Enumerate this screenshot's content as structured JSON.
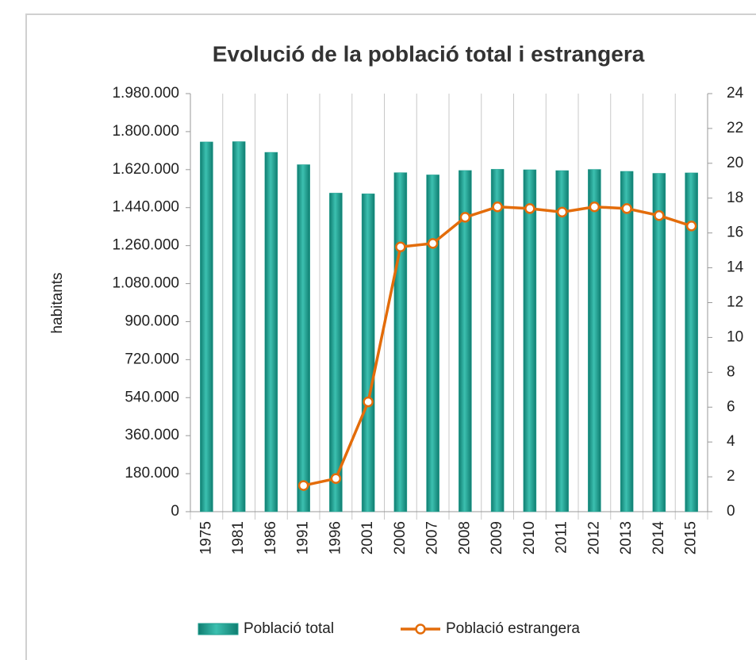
{
  "chart_data": {
    "type": "bar_line",
    "title": "Evolució de la població total i estrangera",
    "ylabel": "habitants",
    "categories": [
      "1975",
      "1981",
      "1986",
      "1991",
      "1996",
      "2001",
      "2006",
      "2007",
      "2008",
      "2009",
      "2010",
      "2011",
      "2012",
      "2013",
      "2014",
      "2015"
    ],
    "series": [
      {
        "name": "Població total",
        "type": "bar",
        "color": "#1f9e8f",
        "values": [
          1751136,
          1752627,
          1701812,
          1643542,
          1508805,
          1505325,
          1605602,
          1595110,
          1615908,
          1621537,
          1619337,
          1615448,
          1620943,
          1611822,
          1602386,
          1604555
        ]
      },
      {
        "name": "Població estrangera",
        "type": "line",
        "axis": "y2",
        "color": "#e36c0a",
        "values": [
          null,
          null,
          null,
          1.5,
          1.9,
          6.3,
          15.2,
          15.4,
          16.9,
          17.5,
          17.4,
          17.2,
          17.5,
          17.4,
          17.0,
          16.4
        ]
      }
    ],
    "ylim": [
      0,
      1980000
    ],
    "yticks": [
      0,
      {
        "value": 180000,
        "label": "180.000"
      },
      {
        "value": 360000,
        "label": "360.000"
      },
      {
        "value": 540000,
        "label": "540.000"
      },
      {
        "value": 720000,
        "label": "720.000"
      },
      {
        "value": 900000,
        "label": "900.000"
      },
      {
        "value": 1080000,
        "label": "1.080.000"
      },
      {
        "value": 1260000,
        "label": "1.260.000"
      },
      {
        "value": 1440000,
        "label": "1.440.000"
      },
      {
        "value": 1620000,
        "label": "1.620.000"
      },
      {
        "value": 1800000,
        "label": "1.800.000"
      },
      {
        "value": 1980000,
        "label": "1.980.000"
      }
    ],
    "y2lim": [
      0,
      24
    ],
    "y2ticks": [
      0,
      2,
      4,
      6,
      8,
      10,
      12,
      14,
      16,
      18,
      20,
      22,
      24
    ]
  }
}
